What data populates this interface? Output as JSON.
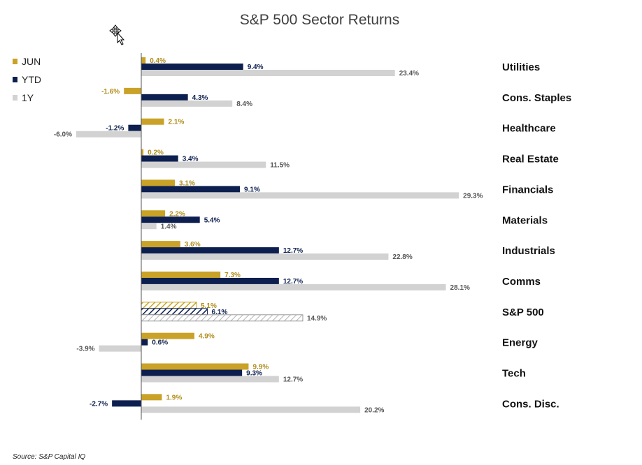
{
  "colors": {
    "jun": "#c9a227",
    "ytd": "#0d1f4f",
    "oneyear": "#d2d2d2",
    "axis": "#555555"
  },
  "footer": {
    "source": "Source: S&P Capital IQ"
  },
  "cursor_icon": "move-cursor-icon",
  "chart_data": {
    "type": "bar",
    "orientation": "horizontal",
    "title": "S&P 500 Sector Returns",
    "xlabel": "",
    "ylabel": "",
    "grid": false,
    "legend_position": "top-left",
    "label_format": "percent-1dp",
    "categories": [
      "Utilities",
      "Cons. Staples",
      "Healthcare",
      "Real Estate",
      "Financials",
      "Materials",
      "Industrials",
      "Comms",
      "S&P 500",
      "Energy",
      "Tech",
      "Cons. Disc."
    ],
    "highlight_category": "S&P 500",
    "highlight_style": "hatched",
    "series": [
      {
        "name": "JUN",
        "color": "#c9a227",
        "values": [
          0.4,
          -1.6,
          2.1,
          0.2,
          3.1,
          2.2,
          3.6,
          7.3,
          5.1,
          4.9,
          9.9,
          1.9
        ]
      },
      {
        "name": "YTD",
        "color": "#0d1f4f",
        "values": [
          9.4,
          4.3,
          -1.2,
          3.4,
          9.1,
          5.4,
          12.7,
          12.7,
          6.1,
          0.6,
          9.3,
          -2.7
        ]
      },
      {
        "name": "1Y",
        "color": "#d2d2d2",
        "values": [
          23.4,
          8.4,
          -6.0,
          11.5,
          29.3,
          1.4,
          22.8,
          28.1,
          14.9,
          -3.9,
          12.7,
          20.2
        ]
      }
    ]
  }
}
